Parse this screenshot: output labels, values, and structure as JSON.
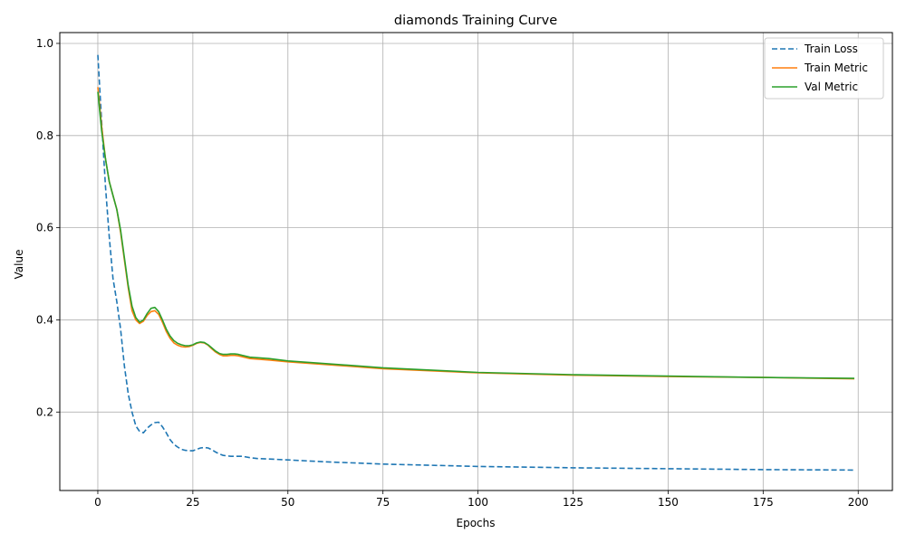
{
  "chart_data": {
    "type": "line",
    "title": "diamonds Training Curve",
    "xlabel": "Epochs",
    "ylabel": "Value",
    "xlim": [
      -10,
      209
    ],
    "ylim": [
      0.0297,
      1.0235
    ],
    "x_ticks": [
      0,
      25,
      50,
      75,
      100,
      125,
      150,
      175,
      200
    ],
    "y_ticks": [
      0.2,
      0.4,
      0.6,
      0.8,
      1.0
    ],
    "grid": true,
    "legend_position": "top-right",
    "series": [
      {
        "name": "Train Loss",
        "color": "#1f77b4",
        "style": "dashed",
        "x": [
          0,
          1,
          2,
          3,
          4,
          5,
          6,
          7,
          8,
          9,
          10,
          11,
          12,
          13,
          14,
          15,
          16,
          17,
          18,
          19,
          20,
          21,
          22,
          23,
          24,
          25,
          26,
          27,
          28,
          29,
          30,
          31,
          32,
          33,
          34,
          35,
          36,
          37,
          38,
          40,
          42,
          45,
          50,
          60,
          75,
          100,
          125,
          150,
          175,
          199
        ],
        "values": [
          0.975,
          0.83,
          0.69,
          0.58,
          0.49,
          0.44,
          0.38,
          0.3,
          0.24,
          0.2,
          0.17,
          0.158,
          0.155,
          0.165,
          0.172,
          0.177,
          0.178,
          0.168,
          0.155,
          0.14,
          0.13,
          0.124,
          0.119,
          0.117,
          0.116,
          0.116,
          0.119,
          0.122,
          0.123,
          0.122,
          0.118,
          0.113,
          0.109,
          0.106,
          0.105,
          0.104,
          0.104,
          0.104,
          0.104,
          0.101,
          0.099,
          0.098,
          0.096,
          0.092,
          0.087,
          0.082,
          0.079,
          0.077,
          0.075,
          0.074
        ]
      },
      {
        "name": "Train Metric",
        "color": "#ff7f0e",
        "style": "solid",
        "x": [
          0,
          1,
          2,
          3,
          4,
          5,
          6,
          7,
          8,
          9,
          10,
          11,
          12,
          13,
          14,
          15,
          16,
          17,
          18,
          19,
          20,
          21,
          22,
          23,
          24,
          25,
          26,
          27,
          28,
          29,
          30,
          31,
          32,
          33,
          34,
          35,
          36,
          37,
          38,
          40,
          45,
          50,
          60,
          75,
          100,
          125,
          150,
          175,
          199
        ],
        "values": [
          0.905,
          0.82,
          0.75,
          0.7,
          0.67,
          0.64,
          0.59,
          0.53,
          0.47,
          0.42,
          0.4,
          0.392,
          0.397,
          0.41,
          0.418,
          0.42,
          0.412,
          0.395,
          0.375,
          0.36,
          0.35,
          0.345,
          0.342,
          0.341,
          0.342,
          0.345,
          0.349,
          0.351,
          0.35,
          0.345,
          0.337,
          0.33,
          0.325,
          0.322,
          0.322,
          0.323,
          0.323,
          0.322,
          0.32,
          0.316,
          0.313,
          0.309,
          0.303,
          0.294,
          0.285,
          0.28,
          0.277,
          0.275,
          0.272
        ]
      },
      {
        "name": "Val Metric",
        "color": "#2ca02c",
        "style": "solid",
        "x": [
          0,
          1,
          2,
          3,
          4,
          5,
          6,
          7,
          8,
          9,
          10,
          11,
          12,
          13,
          14,
          15,
          16,
          17,
          18,
          19,
          20,
          21,
          22,
          23,
          24,
          25,
          26,
          27,
          28,
          29,
          30,
          31,
          32,
          33,
          34,
          35,
          36,
          37,
          38,
          40,
          45,
          50,
          60,
          75,
          100,
          125,
          150,
          175,
          199
        ],
        "values": [
          0.895,
          0.81,
          0.75,
          0.7,
          0.67,
          0.64,
          0.595,
          0.535,
          0.475,
          0.43,
          0.405,
          0.395,
          0.4,
          0.414,
          0.425,
          0.427,
          0.418,
          0.4,
          0.38,
          0.365,
          0.355,
          0.349,
          0.346,
          0.344,
          0.344,
          0.346,
          0.35,
          0.352,
          0.351,
          0.346,
          0.339,
          0.332,
          0.327,
          0.325,
          0.325,
          0.326,
          0.326,
          0.325,
          0.323,
          0.319,
          0.316,
          0.311,
          0.305,
          0.296,
          0.286,
          0.281,
          0.278,
          0.275,
          0.273
        ]
      }
    ]
  }
}
